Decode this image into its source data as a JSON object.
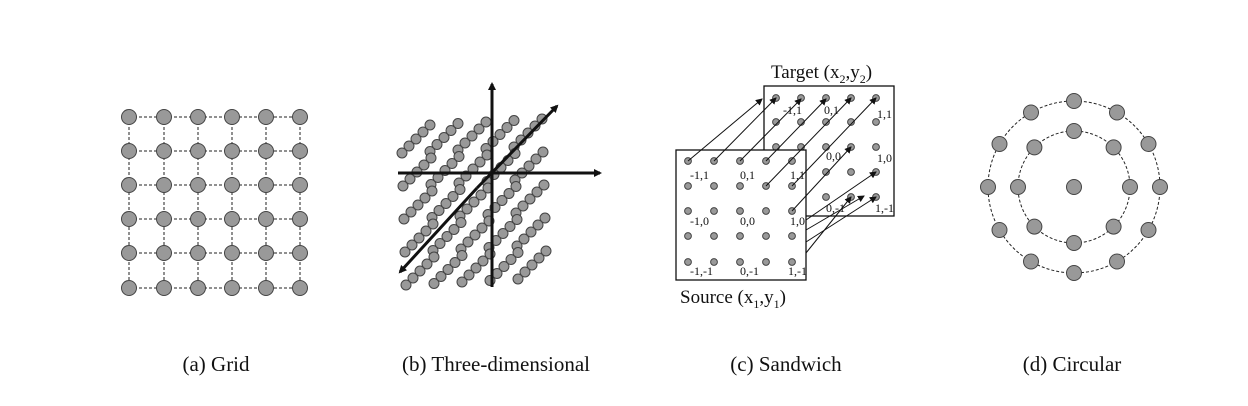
{
  "captions": {
    "grid": "(a) Grid",
    "three_d": "(b) Three-dimensional",
    "sandwich": "(c) Sandwich",
    "circular": "(d) Circular"
  },
  "sandwich": {
    "target": {
      "text": "Target (x",
      "sub1": "2",
      "mid": ",y",
      "sub2": "2",
      "close": ")"
    },
    "source": {
      "text": "Source (x",
      "sub1": "1",
      "mid": ",y",
      "sub2": "1",
      "close": ")"
    },
    "coords": [
      "-1,1",
      "0,1",
      "1,1",
      "-1,0",
      "0,0",
      "1,0",
      "-1,-1",
      "0,-1",
      "1,-1"
    ]
  },
  "colors": {
    "node_fill": "#999999",
    "node_stroke": "#444444"
  }
}
